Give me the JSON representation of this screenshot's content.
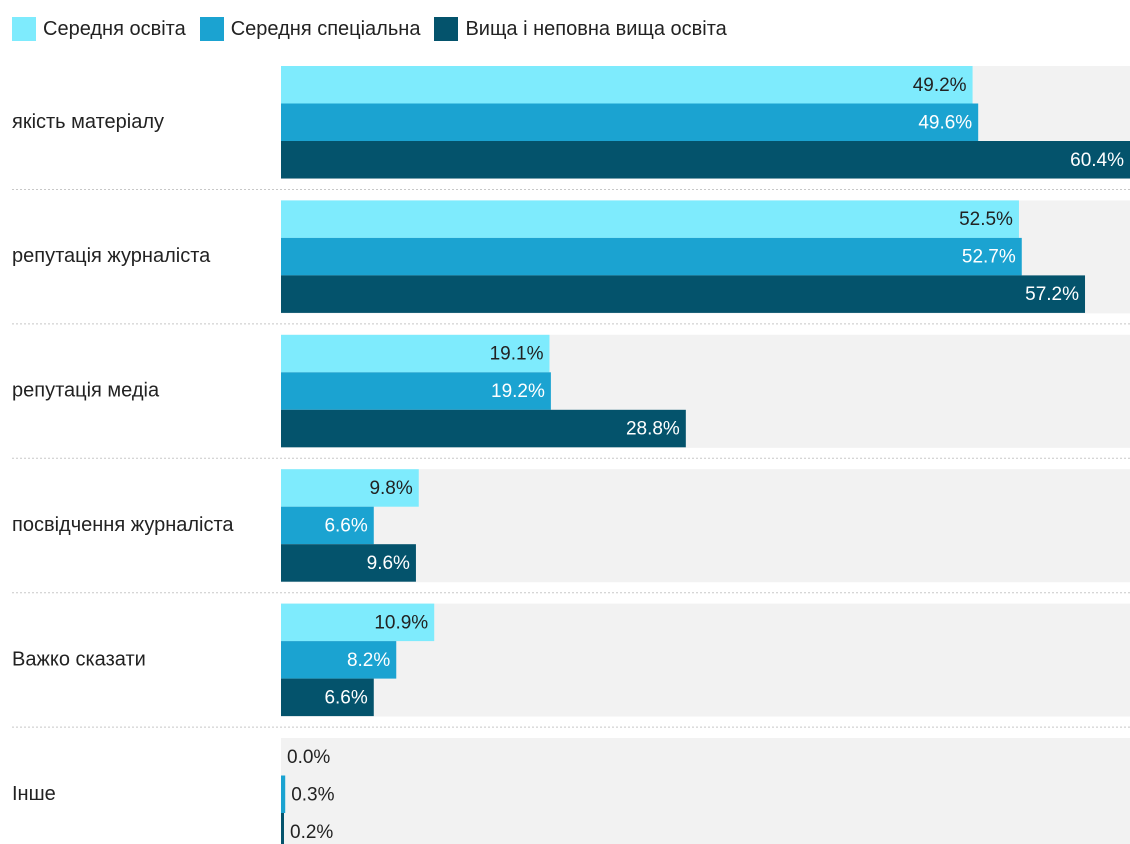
{
  "chart_data": {
    "type": "bar",
    "orientation": "horizontal",
    "grouped": true,
    "categories": [
      "якість матеріалу",
      "репутація журналіста",
      "репутація медіа",
      "посвідчення журналіста",
      "Важко сказати",
      "Інше"
    ],
    "series": [
      {
        "name": "Середня освіта",
        "color": "#7eebfd",
        "values": [
          49.2,
          52.5,
          19.1,
          9.8,
          10.9,
          0.0
        ],
        "labels": [
          "49.2%",
          "52.5%",
          "19.1%",
          "9.8%",
          "10.9%",
          "0.0%"
        ]
      },
      {
        "name": "Середня спеціальна",
        "color": "#1ba3d1",
        "values": [
          49.6,
          52.7,
          19.2,
          6.6,
          8.2,
          0.3
        ],
        "labels": [
          "49.6%",
          "52.7%",
          "19.2%",
          "6.6%",
          "8.2%",
          "0.3%"
        ]
      },
      {
        "name": "Вища і неповна вища освіта",
        "color": "#04536c",
        "values": [
          60.4,
          57.2,
          28.8,
          9.6,
          6.6,
          0.2
        ],
        "labels": [
          "60.4%",
          "57.2%",
          "28.8%",
          "9.6%",
          "6.6%",
          "0.2%"
        ]
      }
    ],
    "xlim": [
      0,
      60.4
    ],
    "legend_position": "top-left",
    "grid": false
  }
}
